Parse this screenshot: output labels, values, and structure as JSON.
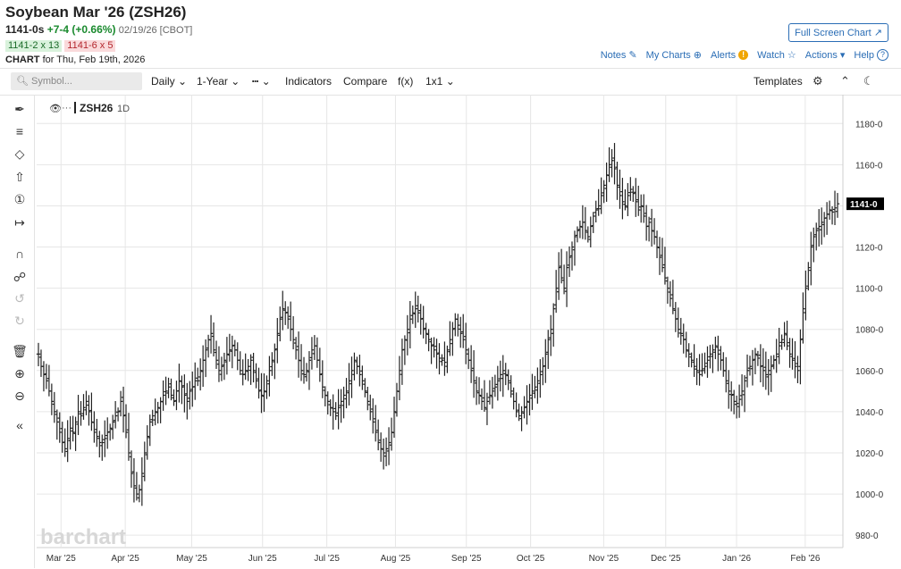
{
  "header": {
    "title": "Soybean Mar '26 (ZSH26)",
    "last": "1141-0s",
    "change": "+7-4 (+0.66%)",
    "date_exchange": "02/19/26 [CBOT]",
    "bid": "1141-2 x 13",
    "ask": "1141-6 x 5",
    "chart_for_label": "CHART",
    "chart_for_date": "for Thu, Feb 19th, 2026",
    "full_screen": "Full Screen Chart"
  },
  "links": {
    "notes": "Notes",
    "my_charts": "My Charts",
    "alerts": "Alerts",
    "watch": "Watch",
    "actions": "Actions",
    "help": "Help"
  },
  "toolbar": {
    "symbol_placeholder": "Symbol...",
    "interval": "Daily",
    "range": "1-Year",
    "indicators": "Indicators",
    "compare": "Compare",
    "fx": "f(x)",
    "layout": "1x1",
    "templates": "Templates"
  },
  "icons": [
    "pen-icon",
    "fib-icon",
    "shape-icon",
    "arrow-icon",
    "number-icon",
    "measure-icon",
    "magnet-icon",
    "lock-icon",
    "undo-icon",
    "redo-icon",
    "trash-icon",
    "zoom-in-icon",
    "zoom-out-icon",
    "collapse-icon",
    "settings-icon",
    "chevron-up-icon",
    "moon-icon",
    "eye-icon"
  ],
  "legend": {
    "symbol": "ZSH26",
    "interval": "1D"
  },
  "watermark": "barchart",
  "colors": {
    "accent": "#2a6db5",
    "up": "#1a8a2e",
    "down": "#b3262d",
    "bar": "#222222",
    "price_tag": "#000000"
  },
  "chart_data": {
    "type": "ohlc",
    "title": "Soybean Mar '26 (ZSH26)",
    "y_tick_labels": [
      "980-0",
      "1000-0",
      "1020-0",
      "1040-0",
      "1060-0",
      "1080-0",
      "1100-0",
      "1120-0",
      "1140-0",
      "1160-0",
      "1180-0"
    ],
    "x_tick_labels": [
      "Mar '25",
      "Apr '25",
      "May '25",
      "Jun '25",
      "Jul '25",
      "Aug '25",
      "Sep '25",
      "Oct '25",
      "Nov '25",
      "Dec '25",
      "Jan '26",
      "Feb '26"
    ],
    "ylim": [
      974,
      1194
    ],
    "xlim": [
      "2025-02-20",
      "2026-02-19"
    ],
    "last_price_label": "1141-0",
    "grid": true,
    "close": [
      1068,
      1062,
      1058,
      1055,
      1050,
      1045,
      1040,
      1035,
      1030,
      1025,
      1022,
      1027,
      1032,
      1030,
      1035,
      1040,
      1038,
      1042,
      1045,
      1040,
      1035,
      1030,
      1028,
      1025,
      1025,
      1027,
      1030,
      1032,
      1035,
      1038,
      1040,
      1045,
      1038,
      1030,
      1020,
      1010,
      1004,
      1000,
      1002,
      1010,
      1020,
      1028,
      1035,
      1038,
      1040,
      1042,
      1045,
      1048,
      1050,
      1052,
      1048,
      1045,
      1050,
      1055,
      1052,
      1048,
      1045,
      1050,
      1052,
      1055,
      1055,
      1060,
      1065,
      1070,
      1075,
      1078,
      1070,
      1065,
      1060,
      1062,
      1065,
      1068,
      1070,
      1072,
      1070,
      1065,
      1060,
      1058,
      1060,
      1062,
      1065,
      1060,
      1055,
      1050,
      1048,
      1050,
      1055,
      1060,
      1065,
      1070,
      1078,
      1085,
      1090,
      1088,
      1085,
      1080,
      1075,
      1070,
      1065,
      1060,
      1058,
      1060,
      1065,
      1070,
      1072,
      1065,
      1058,
      1052,
      1048,
      1045,
      1042,
      1040,
      1038,
      1042,
      1045,
      1048,
      1050,
      1055,
      1060,
      1065,
      1062,
      1058,
      1055,
      1050,
      1045,
      1040,
      1035,
      1030,
      1025,
      1022,
      1020,
      1022,
      1025,
      1030,
      1040,
      1050,
      1060,
      1070,
      1075,
      1080,
      1085,
      1088,
      1090,
      1088,
      1085,
      1080,
      1078,
      1075,
      1072,
      1070,
      1068,
      1066,
      1065,
      1064,
      1070,
      1075,
      1080,
      1085,
      1082,
      1078,
      1075,
      1070,
      1065,
      1060,
      1055,
      1050,
      1048,
      1045,
      1042,
      1045,
      1048,
      1050,
      1052,
      1055,
      1058,
      1060,
      1058,
      1055,
      1050,
      1045,
      1040,
      1038,
      1040,
      1042,
      1045,
      1048,
      1050,
      1052,
      1055,
      1058,
      1062,
      1068,
      1075,
      1080,
      1090,
      1100,
      1110,
      1105,
      1100,
      1110,
      1115,
      1120,
      1125,
      1128,
      1130,
      1132,
      1128,
      1125,
      1130,
      1135,
      1138,
      1140,
      1145,
      1150,
      1155,
      1160,
      1162,
      1158,
      1150,
      1145,
      1142,
      1140,
      1145,
      1148,
      1146,
      1142,
      1138,
      1140,
      1135,
      1130,
      1132,
      1128,
      1125,
      1120,
      1115,
      1110,
      1105,
      1100,
      1095,
      1090,
      1085,
      1080,
      1078,
      1075,
      1070,
      1068,
      1065,
      1062,
      1060,
      1058,
      1060,
      1062,
      1065,
      1068,
      1070,
      1072,
      1068,
      1065,
      1060,
      1055,
      1050,
      1048,
      1045,
      1044,
      1046,
      1050,
      1055,
      1060,
      1062,
      1065,
      1068,
      1066,
      1062,
      1060,
      1058,
      1060,
      1062,
      1065,
      1068,
      1072,
      1075,
      1078,
      1072,
      1068,
      1065,
      1062,
      1060,
      1075,
      1090,
      1100,
      1110,
      1120,
      1125,
      1128,
      1130,
      1132,
      1134,
      1136,
      1138,
      1137,
      1139,
      1141
    ]
  }
}
